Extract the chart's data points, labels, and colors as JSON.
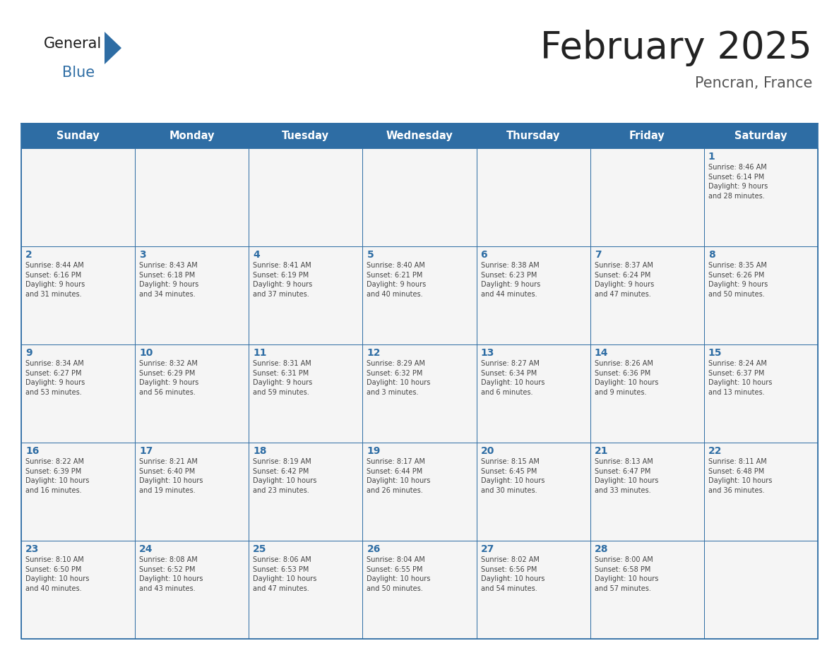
{
  "title": "February 2025",
  "subtitle": "Pencran, France",
  "header_bg": "#2E6DA4",
  "header_text_color": "#FFFFFF",
  "cell_bg": "#F2F2F2",
  "cell_bg_white": "#FFFFFF",
  "cell_border_color": "#2E6DA4",
  "day_number_color": "#2E6DA4",
  "cell_text_color": "#444444",
  "background_color": "#FFFFFF",
  "title_color": "#222222",
  "subtitle_color": "#555555",
  "weekdays": [
    "Sunday",
    "Monday",
    "Tuesday",
    "Wednesday",
    "Thursday",
    "Friday",
    "Saturday"
  ],
  "weeks": [
    [
      {
        "day": "",
        "text": ""
      },
      {
        "day": "",
        "text": ""
      },
      {
        "day": "",
        "text": ""
      },
      {
        "day": "",
        "text": ""
      },
      {
        "day": "",
        "text": ""
      },
      {
        "day": "",
        "text": ""
      },
      {
        "day": "1",
        "text": "Sunrise: 8:46 AM\nSunset: 6:14 PM\nDaylight: 9 hours\nand 28 minutes."
      }
    ],
    [
      {
        "day": "2",
        "text": "Sunrise: 8:44 AM\nSunset: 6:16 PM\nDaylight: 9 hours\nand 31 minutes."
      },
      {
        "day": "3",
        "text": "Sunrise: 8:43 AM\nSunset: 6:18 PM\nDaylight: 9 hours\nand 34 minutes."
      },
      {
        "day": "4",
        "text": "Sunrise: 8:41 AM\nSunset: 6:19 PM\nDaylight: 9 hours\nand 37 minutes."
      },
      {
        "day": "5",
        "text": "Sunrise: 8:40 AM\nSunset: 6:21 PM\nDaylight: 9 hours\nand 40 minutes."
      },
      {
        "day": "6",
        "text": "Sunrise: 8:38 AM\nSunset: 6:23 PM\nDaylight: 9 hours\nand 44 minutes."
      },
      {
        "day": "7",
        "text": "Sunrise: 8:37 AM\nSunset: 6:24 PM\nDaylight: 9 hours\nand 47 minutes."
      },
      {
        "day": "8",
        "text": "Sunrise: 8:35 AM\nSunset: 6:26 PM\nDaylight: 9 hours\nand 50 minutes."
      }
    ],
    [
      {
        "day": "9",
        "text": "Sunrise: 8:34 AM\nSunset: 6:27 PM\nDaylight: 9 hours\nand 53 minutes."
      },
      {
        "day": "10",
        "text": "Sunrise: 8:32 AM\nSunset: 6:29 PM\nDaylight: 9 hours\nand 56 minutes."
      },
      {
        "day": "11",
        "text": "Sunrise: 8:31 AM\nSunset: 6:31 PM\nDaylight: 9 hours\nand 59 minutes."
      },
      {
        "day": "12",
        "text": "Sunrise: 8:29 AM\nSunset: 6:32 PM\nDaylight: 10 hours\nand 3 minutes."
      },
      {
        "day": "13",
        "text": "Sunrise: 8:27 AM\nSunset: 6:34 PM\nDaylight: 10 hours\nand 6 minutes."
      },
      {
        "day": "14",
        "text": "Sunrise: 8:26 AM\nSunset: 6:36 PM\nDaylight: 10 hours\nand 9 minutes."
      },
      {
        "day": "15",
        "text": "Sunrise: 8:24 AM\nSunset: 6:37 PM\nDaylight: 10 hours\nand 13 minutes."
      }
    ],
    [
      {
        "day": "16",
        "text": "Sunrise: 8:22 AM\nSunset: 6:39 PM\nDaylight: 10 hours\nand 16 minutes."
      },
      {
        "day": "17",
        "text": "Sunrise: 8:21 AM\nSunset: 6:40 PM\nDaylight: 10 hours\nand 19 minutes."
      },
      {
        "day": "18",
        "text": "Sunrise: 8:19 AM\nSunset: 6:42 PM\nDaylight: 10 hours\nand 23 minutes."
      },
      {
        "day": "19",
        "text": "Sunrise: 8:17 AM\nSunset: 6:44 PM\nDaylight: 10 hours\nand 26 minutes."
      },
      {
        "day": "20",
        "text": "Sunrise: 8:15 AM\nSunset: 6:45 PM\nDaylight: 10 hours\nand 30 minutes."
      },
      {
        "day": "21",
        "text": "Sunrise: 8:13 AM\nSunset: 6:47 PM\nDaylight: 10 hours\nand 33 minutes."
      },
      {
        "day": "22",
        "text": "Sunrise: 8:11 AM\nSunset: 6:48 PM\nDaylight: 10 hours\nand 36 minutes."
      }
    ],
    [
      {
        "day": "23",
        "text": "Sunrise: 8:10 AM\nSunset: 6:50 PM\nDaylight: 10 hours\nand 40 minutes."
      },
      {
        "day": "24",
        "text": "Sunrise: 8:08 AM\nSunset: 6:52 PM\nDaylight: 10 hours\nand 43 minutes."
      },
      {
        "day": "25",
        "text": "Sunrise: 8:06 AM\nSunset: 6:53 PM\nDaylight: 10 hours\nand 47 minutes."
      },
      {
        "day": "26",
        "text": "Sunrise: 8:04 AM\nSunset: 6:55 PM\nDaylight: 10 hours\nand 50 minutes."
      },
      {
        "day": "27",
        "text": "Sunrise: 8:02 AM\nSunset: 6:56 PM\nDaylight: 10 hours\nand 54 minutes."
      },
      {
        "day": "28",
        "text": "Sunrise: 8:00 AM\nSunset: 6:58 PM\nDaylight: 10 hours\nand 57 minutes."
      },
      {
        "day": "",
        "text": ""
      }
    ]
  ],
  "logo_text_general": "General",
  "logo_text_blue": "Blue",
  "logo_color_general": "#1a1a1a",
  "logo_triangle_color": "#2E6DA4",
  "logo_blue_color": "#2E6DA4"
}
